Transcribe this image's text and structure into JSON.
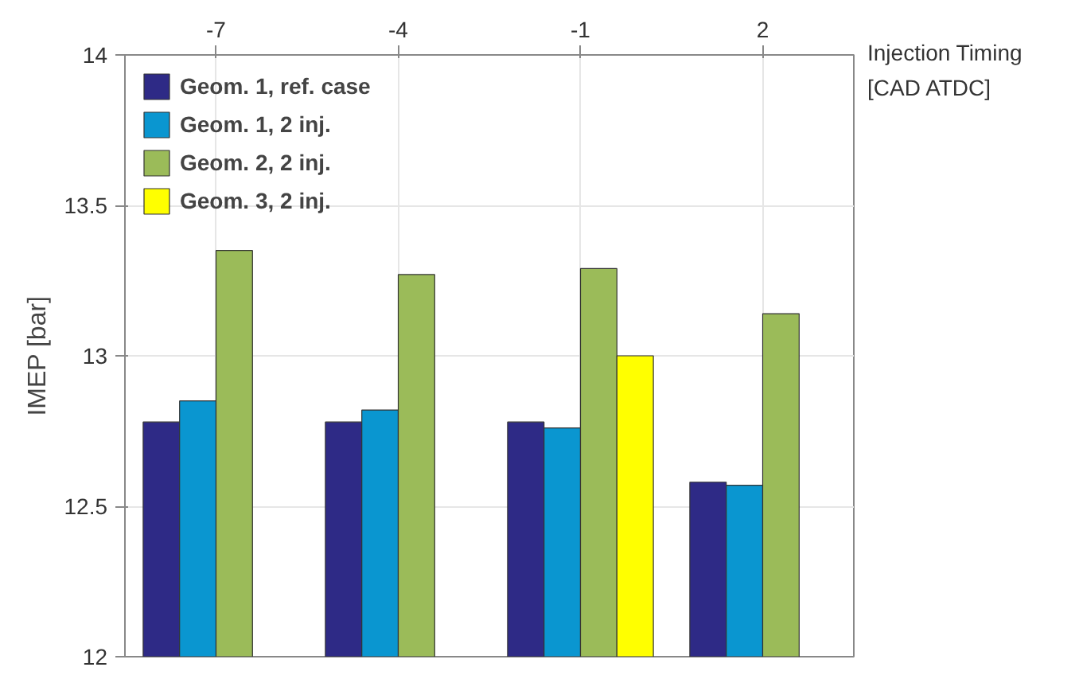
{
  "chart_data": {
    "type": "bar",
    "xlabel": "Injection Timing [CAD ATDC]",
    "ylabel": "IMEP [bar]",
    "categories": [
      "-7",
      "-4",
      "-1",
      "2"
    ],
    "series": [
      {
        "name": "Geom. 1, ref. case",
        "color": "#2e2a86",
        "values": [
          12.78,
          12.78,
          12.78,
          12.58
        ]
      },
      {
        "name": "Geom. 1, 2 inj.",
        "color": "#0a96d0",
        "values": [
          12.85,
          12.82,
          12.76,
          12.57
        ]
      },
      {
        "name": "Geom. 2, 2 inj.",
        "color": "#9bbb59",
        "values": [
          13.35,
          13.27,
          13.29,
          13.14
        ]
      },
      {
        "name": "Geom. 3, 2 inj.",
        "color": "#ffff00",
        "values": [
          null,
          null,
          13.0,
          null
        ]
      }
    ],
    "ylim": [
      12,
      14
    ],
    "yticks": [
      12,
      12.5,
      13,
      13.5,
      14
    ],
    "grid": true,
    "legend": "top left"
  }
}
